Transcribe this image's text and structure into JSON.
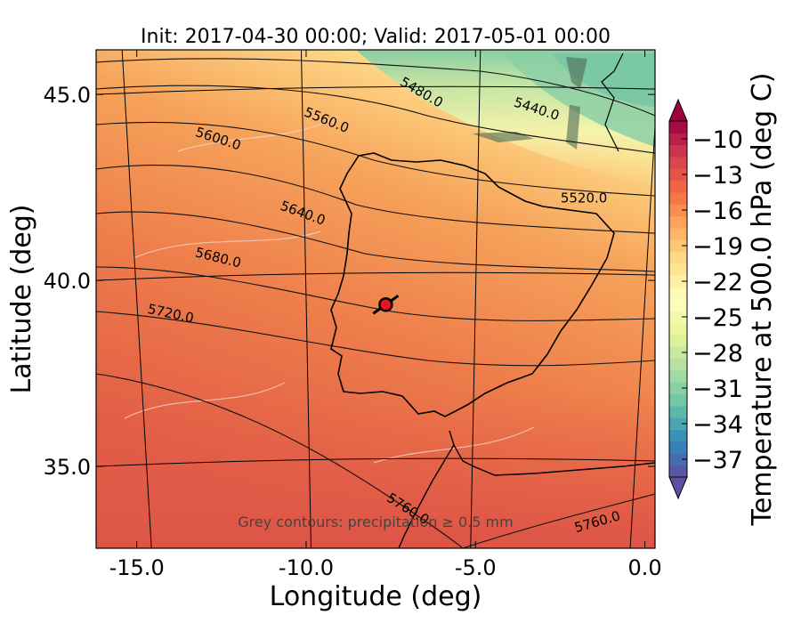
{
  "chart_data": {
    "type": "heatmap",
    "title": "Init: 2017-04-30 00:00; Valid: 2017-05-01 00:00",
    "xlabel": "Longitude (deg)",
    "ylabel": "Latitude (deg)",
    "xlim": [
      -16.2,
      0.3
    ],
    "ylim": [
      32.8,
      46.2
    ],
    "x_ticks": [
      {
        "value": -15.0,
        "label": "-15.0"
      },
      {
        "value": -10.0,
        "label": "-10.0"
      },
      {
        "value": -5.0,
        "label": "-5.0"
      },
      {
        "value": 0.0,
        "label": "0.0"
      }
    ],
    "y_ticks": [
      {
        "value": 45.0,
        "label": "45.0"
      },
      {
        "value": 40.0,
        "label": "40.0"
      },
      {
        "value": 35.0,
        "label": "35.0"
      }
    ],
    "colorbar": {
      "label": "Temperature at 500.0 hPa (deg C)",
      "min": -38.5,
      "max": -8.5,
      "ticks": [
        {
          "value": -10,
          "label": "−10"
        },
        {
          "value": -13,
          "label": "−13"
        },
        {
          "value": -16,
          "label": "−16"
        },
        {
          "value": -19,
          "label": "−19"
        },
        {
          "value": -22,
          "label": "−22"
        },
        {
          "value": -25,
          "label": "−25"
        },
        {
          "value": -28,
          "label": "−28"
        },
        {
          "value": -31,
          "label": "−31"
        },
        {
          "value": -34,
          "label": "−34"
        },
        {
          "value": -37,
          "label": "−37"
        }
      ],
      "colors": [
        "#5e4fa2",
        "#3288bd",
        "#66c2a5",
        "#abdda4",
        "#e6f598",
        "#ffffbf",
        "#fee08b",
        "#fdae61",
        "#f46d43",
        "#d53e4f",
        "#9e0142"
      ]
    },
    "height_contour_labels": [
      {
        "text": "5440.0",
        "lon": -3.2,
        "lat": 44.6,
        "angle": 18
      },
      {
        "text": "5480.0",
        "lon": -6.6,
        "lat": 45.05,
        "angle": 30
      },
      {
        "text": "5520.0",
        "lon": -1.8,
        "lat": 42.2,
        "angle": 0
      },
      {
        "text": "5560.0",
        "lon": -9.4,
        "lat": 44.3,
        "angle": 22
      },
      {
        "text": "5600.0",
        "lon": -12.6,
        "lat": 43.8,
        "angle": 18
      },
      {
        "text": "5640.0",
        "lon": -10.1,
        "lat": 41.8,
        "angle": 20
      },
      {
        "text": "5680.0",
        "lon": -12.6,
        "lat": 40.6,
        "angle": 14
      },
      {
        "text": "5720.0",
        "lon": -14.0,
        "lat": 39.1,
        "angle": 12
      },
      {
        "text": "5760.0",
        "lon": -7.0,
        "lat": 33.85,
        "angle": 32
      },
      {
        "text": "5760.0",
        "lon": -1.4,
        "lat": 33.5,
        "angle": -16
      }
    ],
    "marker": {
      "lon": -7.65,
      "lat": 39.35
    },
    "annotation": "Grey contours: precipitation ≥ 0.5 mm"
  }
}
